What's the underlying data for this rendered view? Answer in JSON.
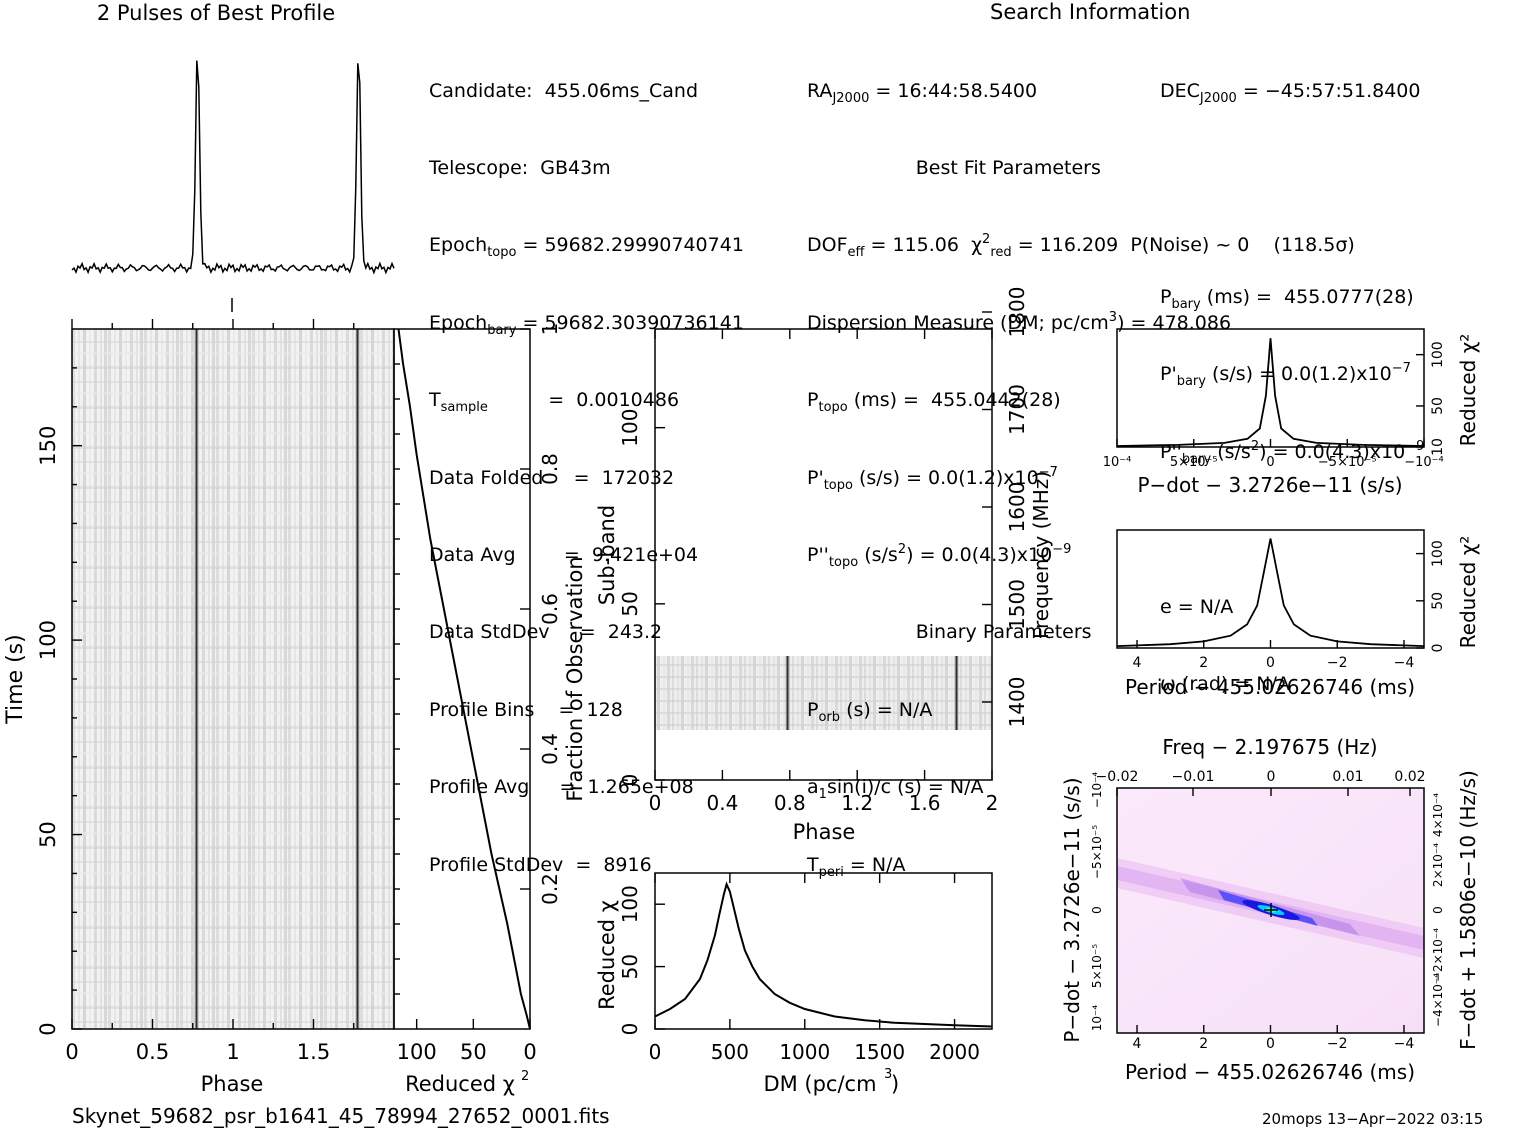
{
  "titles": {
    "profile": "2 Pulses of Best Profile",
    "search": "Search Information",
    "best_fit": "Best Fit Parameters",
    "binary": "Binary Parameters"
  },
  "info": {
    "candidate": "Candidate:  455.06ms_Cand",
    "telescope": "Telescope:  GB43m",
    "epoch_topo": "= 59682.2999074074​1",
    "epoch_bary": "= 59682.30390736141",
    "t_sample": "=  0.0010486",
    "data_folded": "=  172032",
    "data_avg": "=  9.421e+04",
    "data_stddev": "=  243.2",
    "profile_bins": "=  128",
    "profile_avg": "=  1.265e+08",
    "profile_stddev": "=  8916"
  },
  "params": {
    "ra": "= 16:44:58.5400",
    "dec": "= −45:57:51.8400",
    "dof": "= 115.06",
    "chi_red": "= 116.209",
    "p_noise": "P(Noise) ~ 0    (118.5σ)",
    "dm": "Dispersion Measure (DM; pc/cm",
    "dm_val": ") = 478.086",
    "p_topo": "(ms) =  455.0442(28)",
    "p_bary": "(ms) =  455.0777(28)",
    "pd_topo": "(s/s) = 0.0(1.2)x10",
    "pd_bary": "(s/s) = 0.0(1.2)x10",
    "pdd_topo": "(s/s",
    "pdd_topo_val": ") = 0.0(4.3)x10",
    "pdd_bary": "(s/s",
    "pdd_bary_val": ") = 0.0(4.3)x10",
    "p_orb": "(s) = N/A",
    "a1sini": "sin(i)/c (s) = N/A",
    "t_peri": "= N/A",
    "ecc": "e = N/A",
    "omega": "ω (rad) = N/A"
  },
  "footer": {
    "filename": "Skynet_59682_psr_b1641_45_78994_27652_0001.fits",
    "stamp": "20mops 13−Apr−2022 03:15"
  },
  "colors": {
    "ink": "#000000",
    "grey_dark": "#222222",
    "cmap_low": "#ffe6ff",
    "cmap_mid": "#2222ff",
    "cmap_hi": "#00ffff"
  },
  "chart_data": [
    {
      "type": "line",
      "title": "2 Pulses of Best Profile",
      "x": "phase 0-2",
      "peaks_phase": [
        0.78,
        1.78
      ],
      "peak_value_relative": 1.0,
      "baseline_relative": 0.05
    },
    {
      "type": "heatmap",
      "name": "time-phase",
      "xlabel": "Phase",
      "ylabel": "Time (s)",
      "xlim": [
        0,
        2
      ],
      "ylim": [
        0,
        180
      ],
      "xticks": [
        "0",
        "0.5",
        "1",
        "1.5"
      ],
      "yticks": [
        "0",
        "50",
        "100",
        "150"
      ],
      "pulse_phase": [
        0.78,
        1.78
      ]
    },
    {
      "type": "line",
      "name": "cumulative-chi2",
      "xlabel": "Reduced χ",
      "ylabel": "Fraction of Observation",
      "xlim": [
        120,
        0
      ],
      "ylim": [
        0,
        1
      ],
      "xticks": [
        "100",
        "50",
        "0"
      ],
      "yticks": [
        "0.2",
        "0.4",
        "0.6",
        "0.8",
        "1"
      ],
      "x": [
        0,
        3,
        8,
        14,
        20,
        27,
        34,
        40,
        46,
        52,
        58,
        64,
        70,
        76,
        82,
        88,
        94,
        100,
        106,
        112,
        116
      ],
      "y": [
        0,
        0.02,
        0.05,
        0.1,
        0.15,
        0.2,
        0.25,
        0.3,
        0.35,
        0.4,
        0.45,
        0.5,
        0.55,
        0.6,
        0.65,
        0.7,
        0.76,
        0.82,
        0.89,
        0.95,
        1.0
      ]
    },
    {
      "type": "heatmap",
      "name": "subband-phase",
      "xlabel": "Phase",
      "ylabel": "Sub-band",
      "ylabel_right": "Frequency (MHz)",
      "xlim": [
        0,
        2
      ],
      "ylim": [
        0,
        128
      ],
      "xticks": [
        "0",
        "0.4",
        "0.8",
        "1.2",
        "1.6",
        "2"
      ],
      "yticks": [
        "0",
        "50",
        "100"
      ],
      "freq_ticks": [
        "1400",
        "1500",
        "1600",
        "1700",
        "1800"
      ],
      "band_subbands": [
        14,
        35
      ],
      "pulse_phase": [
        0.78,
        1.79
      ]
    },
    {
      "type": "line",
      "name": "dm-chi2",
      "xlabel": "DM (pc/cm",
      "ylabel": "Reduced χ",
      "xlim": [
        0,
        2250
      ],
      "ylim": [
        0,
        125
      ],
      "xticks": [
        "0",
        "500",
        "1000",
        "1500",
        "2000"
      ],
      "yticks": [
        "0",
        "50",
        "100"
      ],
      "x": [
        0,
        100,
        200,
        300,
        350,
        400,
        430,
        460,
        478,
        500,
        530,
        560,
        600,
        650,
        700,
        800,
        900,
        1000,
        1200,
        1400,
        1600,
        1800,
        2000,
        2250
      ],
      "y": [
        10,
        16,
        24,
        40,
        55,
        75,
        92,
        108,
        116,
        110,
        95,
        80,
        63,
        50,
        40,
        28,
        21,
        16,
        10,
        7,
        5,
        4,
        3,
        2
      ]
    },
    {
      "type": "line",
      "name": "pdot-chi2",
      "xlabel": "P−dot − 3.2726e−11 (s/s)",
      "ylabel": "Reduced χ",
      "xlim": [
        0.0001,
        -0.0001
      ],
      "ylim": [
        10,
        125
      ],
      "xtick_labels": [
        "10⁻⁴",
        "5×10⁻⁵",
        "0",
        "−5×10⁻⁵",
        "−10⁻⁴"
      ],
      "yticks": [
        "10",
        "50",
        "100"
      ],
      "x": [
        0.0001,
        6e-05,
        3e-05,
        1.5e-05,
        7e-06,
        3e-06,
        0,
        -3e-06,
        -7e-06,
        -1.5e-05,
        -3e-05,
        -6e-05,
        -0.0001
      ],
      "y": [
        11,
        12,
        14,
        18,
        28,
        60,
        116,
        60,
        28,
        18,
        14,
        12,
        11
      ]
    },
    {
      "type": "line",
      "name": "period-chi2",
      "xlabel": "Period − 455.02626746 (ms)",
      "ylabel": "Reduced χ",
      "xlim": [
        4.6,
        -4.6
      ],
      "ylim": [
        0,
        125
      ],
      "xticks": [
        "4",
        "2",
        "0",
        "−2",
        "−4"
      ],
      "yticks": [
        "0",
        "50",
        "100"
      ],
      "x": [
        4.6,
        3,
        2,
        1.2,
        0.7,
        0.4,
        0.2,
        0,
        -0.2,
        -0.4,
        -0.7,
        -1.2,
        -2,
        -3,
        -4.6
      ],
      "y": [
        2,
        4,
        7,
        13,
        25,
        45,
        80,
        116,
        80,
        45,
        25,
        13,
        7,
        4,
        2
      ]
    },
    {
      "type": "heatmap",
      "name": "period-pdot",
      "title": "Freq − 2.197675 (Hz)",
      "xlabel": "Period − 455.02626746 (ms)",
      "ylabel": "P−dot − 3.2726e−11 (s/s)",
      "ylabel_right": "F−dot + 1.5806e−10 (Hz/s)",
      "xticks": [
        "4",
        "2",
        "0",
        "−2",
        "−4"
      ],
      "top_ticks": [
        "−0.02",
        "−0.01",
        "0",
        "0.01",
        "0.02"
      ]
    }
  ]
}
